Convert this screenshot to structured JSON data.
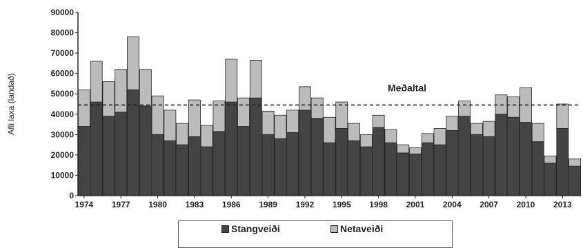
{
  "chart_data": {
    "type": "bar",
    "stacked": true,
    "ylabel": "Afli laxa (landað)",
    "ylim": [
      0,
      90000
    ],
    "yticks": [
      0,
      10000,
      20000,
      30000,
      40000,
      50000,
      60000,
      70000,
      80000,
      90000
    ],
    "x": [
      1974,
      1975,
      1976,
      1977,
      1978,
      1979,
      1980,
      1981,
      1982,
      1983,
      1984,
      1985,
      1986,
      1987,
      1988,
      1989,
      1990,
      1991,
      1992,
      1993,
      1994,
      1995,
      1996,
      1997,
      1998,
      1999,
      2000,
      2001,
      2002,
      2003,
      2004,
      2005,
      2006,
      2007,
      2008,
      2009,
      2010,
      2011,
      2012,
      2013,
      2014
    ],
    "xtick_labels": [
      "1974",
      "1977",
      "1980",
      "1983",
      "1986",
      "1989",
      "1992",
      "1995",
      "1998",
      "2001",
      "2004",
      "2007",
      "2010",
      "2013"
    ],
    "series": [
      {
        "name": "Stangveiði",
        "color": "#444444",
        "values": [
          34000,
          46000,
          39000,
          41000,
          52000,
          44000,
          30000,
          27000,
          25000,
          29000,
          24000,
          31500,
          46000,
          34000,
          48000,
          30000,
          28000,
          31000,
          42000,
          38000,
          26000,
          33000,
          27000,
          24000,
          33500,
          26000,
          21000,
          20500,
          26000,
          25000,
          32000,
          39000,
          30000,
          29000,
          40000,
          38500,
          36000,
          26500,
          16000,
          33000,
          14500
        ]
      },
      {
        "name": "Netaveiði",
        "color": "#bbbbbb",
        "values": [
          18000,
          20000,
          17000,
          21000,
          26000,
          18000,
          19000,
          15000,
          10500,
          18000,
          10500,
          15000,
          21000,
          14000,
          18500,
          11500,
          11500,
          11000,
          11500,
          10000,
          12500,
          13000,
          8500,
          6000,
          6000,
          6500,
          4000,
          3000,
          4500,
          8000,
          7000,
          7500,
          5500,
          7500,
          9500,
          10000,
          17000,
          9000,
          3500,
          12000,
          3500
        ]
      }
    ],
    "reference_line": {
      "label": "Meðaltal",
      "value": 44500,
      "style": "dashed"
    },
    "legend_position": "bottom"
  }
}
